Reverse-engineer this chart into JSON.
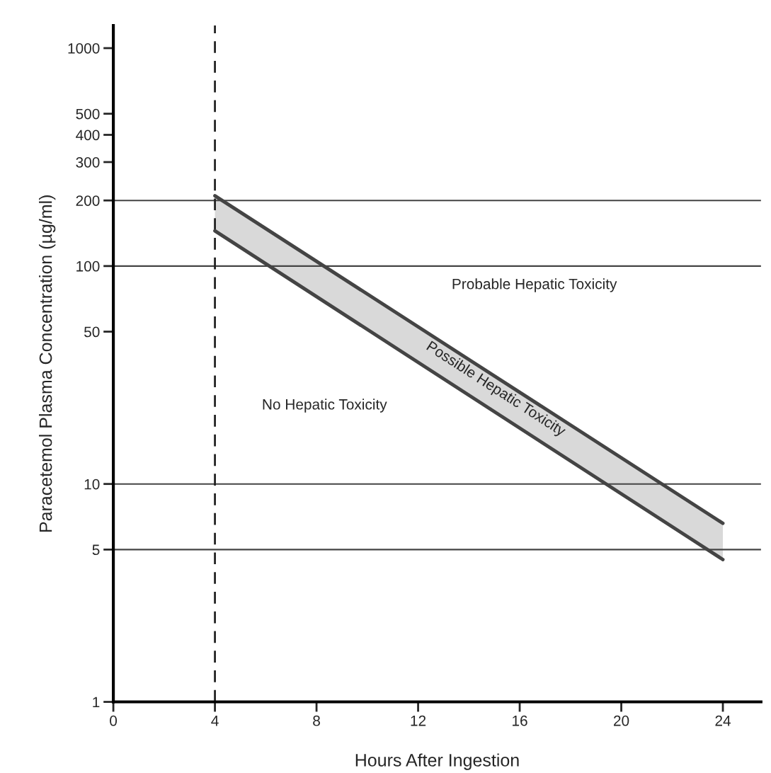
{
  "chart_data": {
    "type": "line",
    "xlabel": "Hours After Ingestion",
    "ylabel": "Paracetemol Plasma Concentration (µg/ml)",
    "series": [
      {
        "values": [
          210,
          6.6
        ],
        "color": "#444444",
        "lower": [
          145,
          4.5
        ],
        "upper": [
          210,
          6.6
        ]
      },
      {
        "values": [
          145,
          4.5
        ],
        "color": "#444444"
      }
    ],
    "x": [
      4,
      24
    ],
    "log": "y",
    "xlim": [
      0,
      25.5
    ],
    "xticks": [
      0,
      4,
      8,
      12,
      16,
      20,
      24
    ],
    "ylim": [
      1,
      1270
    ],
    "yticks": [
      1,
      5,
      10,
      50,
      100,
      200,
      300,
      400,
      500,
      1000
    ],
    "ref_lines": [
      {
        "axis": "y",
        "value": 200,
        "color": "#444444"
      },
      {
        "axis": "y",
        "value": 100,
        "color": "#444444"
      },
      {
        "axis": "y",
        "value": 10,
        "color": "#444444"
      },
      {
        "axis": "y",
        "value": 5,
        "color": "#444444"
      },
      {
        "axis": "x",
        "value": 4,
        "color": "#222222",
        "line_style": "dashed"
      }
    ],
    "annotations": [
      "Probable Hepatic Toxicity",
      "No Hepatic Toxicity",
      "Possible Hepatic Toxicity"
    ],
    "grid": false,
    "legend": false,
    "marker": "none",
    "line_style": "solid"
  }
}
